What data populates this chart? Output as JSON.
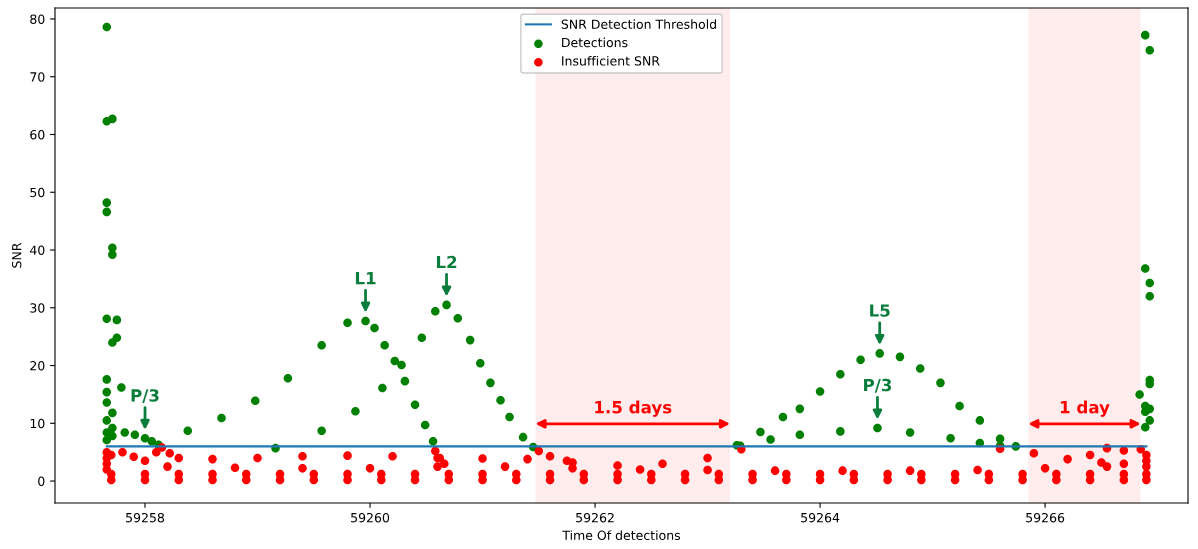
{
  "chart_data": {
    "type": "scatter",
    "xlabel": "Time Of detections",
    "ylabel": "SNR",
    "xlim": [
      59257.2,
      59267.27
    ],
    "ylim": [
      -3.8,
      81.9
    ],
    "xticks": [
      59258,
      59260,
      59262,
      59264,
      59266
    ],
    "yticks": [
      0,
      10,
      20,
      30,
      40,
      50,
      60,
      70,
      80
    ],
    "grid": false,
    "legend": "top",
    "series": [
      {
        "name": "SNR Detection Threshold",
        "type": "line",
        "color": "#1f77b4",
        "x": [
          59257.66,
          59266.9
        ],
        "values": [
          6,
          6
        ]
      },
      {
        "name": "Detections",
        "color": "#008000",
        "marker": "circle",
        "x": [
          59257.66,
          59257.66,
          59257.71,
          59257.66,
          59257.66,
          59257.71,
          59257.71,
          59257.66,
          59257.75,
          59257.71,
          59257.75,
          59257.66,
          59257.79,
          59257.66,
          59257.66,
          59257.71,
          59257.66,
          59257.71,
          59257.66,
          59257.71,
          59257.66,
          59257.82,
          59257.91,
          59258.0,
          59258.06,
          59258.12,
          59258.38,
          59258.68,
          59258.98,
          59259.27,
          59259.57,
          59259.8,
          59259.96,
          59260.04,
          59260.13,
          59260.22,
          59260.31,
          59260.4,
          59260.49,
          59260.56,
          59259.16,
          59259.57,
          59259.87,
          59260.11,
          59260.28,
          59260.46,
          59260.58,
          59260.68,
          59260.78,
          59260.89,
          59260.98,
          59261.07,
          59261.16,
          59261.24,
          59261.36,
          59261.45,
          59263.26,
          59263.47,
          59263.67,
          59263.82,
          59264.0,
          59264.18,
          59264.36,
          59264.53,
          59264.71,
          59264.89,
          59265.07,
          59265.24,
          59265.42,
          59265.6,
          59265.74,
          59263.29,
          59263.56,
          59263.82,
          59264.18,
          59264.51,
          59264.8,
          59265.16,
          59265.42,
          59265.6,
          59266.89,
          59266.93,
          59266.89,
          59266.93,
          59266.93,
          59266.93,
          59266.93,
          59266.84,
          59266.89,
          59266.93,
          59266.89,
          59266.93,
          59266.89
        ],
        "values": [
          78.6,
          62.3,
          62.7,
          48.2,
          46.6,
          40.4,
          39.2,
          28.1,
          27.9,
          24.0,
          24.8,
          17.6,
          16.2,
          15.4,
          13.6,
          11.8,
          10.5,
          9.2,
          8.4,
          7.8,
          7.1,
          8.4,
          8.0,
          7.4,
          6.9,
          6.3,
          8.7,
          10.9,
          13.9,
          17.8,
          23.5,
          27.4,
          27.7,
          26.5,
          23.5,
          20.8,
          17.3,
          13.2,
          9.7,
          6.9,
          5.7,
          8.7,
          12.1,
          16.1,
          20.1,
          24.8,
          29.4,
          30.5,
          28.2,
          24.4,
          20.4,
          17.0,
          14.0,
          11.1,
          7.6,
          5.9,
          6.2,
          8.5,
          11.1,
          12.5,
          15.5,
          18.5,
          21.0,
          22.1,
          21.5,
          19.5,
          17.0,
          13.0,
          10.5,
          7.3,
          6.0,
          6.1,
          7.2,
          8.0,
          8.6,
          9.2,
          8.4,
          7.4,
          6.6,
          6.1,
          77.2,
          74.6,
          36.8,
          34.3,
          32.0,
          17.5,
          16.8,
          15.0,
          13.0,
          12.5,
          12.0,
          10.5,
          9.3
        ]
      },
      {
        "name": "Insufficient SNR",
        "color": "#ff0000",
        "marker": "circle",
        "x": [
          59257.7,
          59258.0,
          59258.3,
          59258.6,
          59258.9,
          59259.2,
          59259.5,
          59259.8,
          59260.1,
          59260.4,
          59260.7,
          59261.0,
          59261.3,
          59261.6,
          59261.9,
          59262.2,
          59262.5,
          59262.8,
          59263.1,
          59263.4,
          59263.7,
          59264.0,
          59264.3,
          59264.6,
          59264.9,
          59265.2,
          59265.5,
          59265.8,
          59266.1,
          59266.4,
          59266.7,
          59266.9,
          59257.7,
          59258.0,
          59258.3,
          59258.6,
          59258.9,
          59259.2,
          59259.5,
          59259.8,
          59260.1,
          59260.4,
          59260.7,
          59261.0,
          59261.3,
          59261.6,
          59261.9,
          59262.2,
          59262.5,
          59262.8,
          59263.1,
          59263.4,
          59263.7,
          59264.0,
          59264.3,
          59264.6,
          59264.9,
          59265.2,
          59265.5,
          59265.8,
          59266.1,
          59266.4,
          59266.7,
          59266.9,
          59258.1,
          59258.3,
          59258.6,
          59259.0,
          59259.4,
          59259.8,
          59260.2,
          59260.6,
          59261.0,
          59261.4,
          59261.8,
          59262.2,
          59262.6,
          59263.0,
          59263.3,
          59258.2,
          59258.8,
          59259.4,
          59260.0,
          59260.6,
          59261.2,
          59261.8,
          59262.4,
          59263.0,
          59260.58,
          59260.62,
          59260.66,
          59261.5,
          59261.6,
          59261.75,
          59258.15,
          59258.22,
          59265.6,
          59265.9,
          59266.2,
          59266.5,
          59266.4,
          59266.55,
          59266.7,
          59266.85,
          59266.9,
          59266.9,
          59266.9,
          59266.7,
          59266.55,
          59257.66,
          59257.66,
          59257.66,
          59257.66,
          59257.7,
          59257.8,
          59257.9,
          59258.0,
          59263.6,
          59264.2,
          59264.8,
          59265.4,
          59266.0
        ],
        "values": [
          0.2,
          0.2,
          0.2,
          0.2,
          0.2,
          0.2,
          0.2,
          0.2,
          0.2,
          0.2,
          0.2,
          0.2,
          0.2,
          0.2,
          0.2,
          0.2,
          0.2,
          0.2,
          0.2,
          0.2,
          0.2,
          0.2,
          0.2,
          0.2,
          0.2,
          0.2,
          0.2,
          0.2,
          0.2,
          0.2,
          0.2,
          0.2,
          1.2,
          1.2,
          1.2,
          1.2,
          1.2,
          1.2,
          1.2,
          1.2,
          1.2,
          1.2,
          1.2,
          1.2,
          1.2,
          1.2,
          1.2,
          1.2,
          1.2,
          1.2,
          1.2,
          1.2,
          1.2,
          1.2,
          1.2,
          1.2,
          1.2,
          1.2,
          1.2,
          1.2,
          1.2,
          1.2,
          1.2,
          1.2,
          5.0,
          4.0,
          3.8,
          4.0,
          4.3,
          4.4,
          4.3,
          4.0,
          3.9,
          3.8,
          3.2,
          2.7,
          3.0,
          4.0,
          5.5,
          2.5,
          2.3,
          2.2,
          2.2,
          2.5,
          2.5,
          2.2,
          2.0,
          1.9,
          5.2,
          4.0,
          3.0,
          5.2,
          4.3,
          3.5,
          5.8,
          4.8,
          5.6,
          4.8,
          3.8,
          3.2,
          4.5,
          5.7,
          5.3,
          5.5,
          4.5,
          3.5,
          2.5,
          3.0,
          2.5,
          5.0,
          4.0,
          3.0,
          2.0,
          4.5,
          5.0,
          4.2,
          3.5,
          1.8,
          1.8,
          1.8,
          1.9,
          2.2
        ]
      }
    ],
    "annotations": [
      {
        "text": "P/3",
        "x": 59258.0,
        "y": 7.4
      },
      {
        "text": "L1",
        "x": 59259.96,
        "y": 27.7
      },
      {
        "text": "L2",
        "x": 59260.68,
        "y": 30.5
      },
      {
        "text": "L5",
        "x": 59264.53,
        "y": 22.1
      },
      {
        "text": "P/3",
        "x": 59264.51,
        "y": 9.2
      }
    ],
    "bands": [
      {
        "axis": "x",
        "from": 59261.47,
        "to": 59263.2,
        "label": "1.5 days",
        "color": "#ff0000"
      },
      {
        "axis": "x",
        "from": 59265.85,
        "to": 59266.85,
        "label": "1 day",
        "color": "#ff0000"
      }
    ]
  }
}
